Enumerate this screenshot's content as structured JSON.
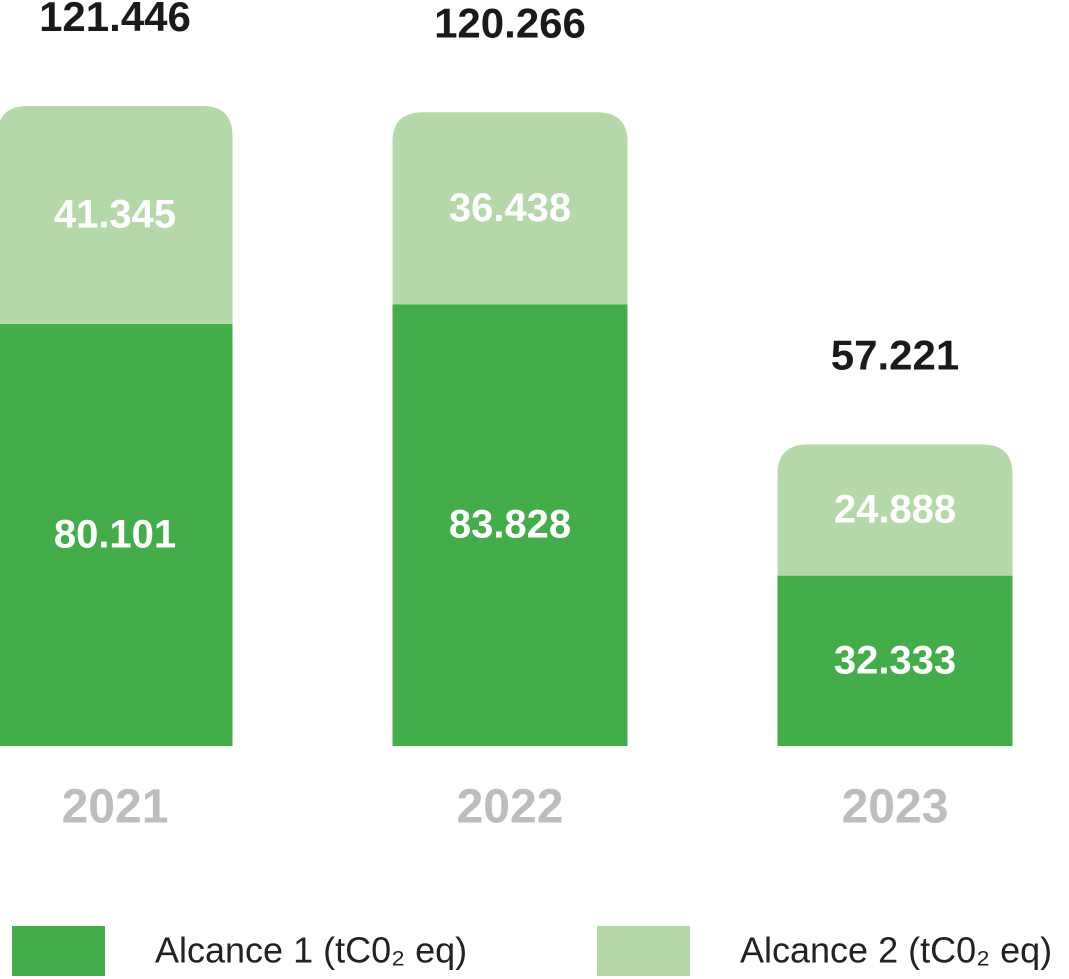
{
  "chart_data": {
    "type": "stacked-bar",
    "categories": [
      "2021",
      "2022",
      "2023"
    ],
    "series": [
      {
        "name": "Alcance 1 (tC0₂ eq)",
        "color": "#43ad4a",
        "values": [
          80101,
          83828,
          32333
        ],
        "value_labels": [
          "80.101",
          "83.828",
          "32.333"
        ]
      },
      {
        "name": "Alcance 2 (tC0₂ eq)",
        "color": "#b5d8a9",
        "values": [
          41345,
          36438,
          24888
        ],
        "value_labels": [
          "41.345",
          "36.438",
          "24.888"
        ]
      }
    ],
    "totals": [
      {
        "value": 121446,
        "label": "121.446"
      },
      {
        "value": 120266,
        "label": "120.266"
      },
      {
        "value": 57221,
        "label": "57.221"
      }
    ],
    "legend": "bottom"
  }
}
